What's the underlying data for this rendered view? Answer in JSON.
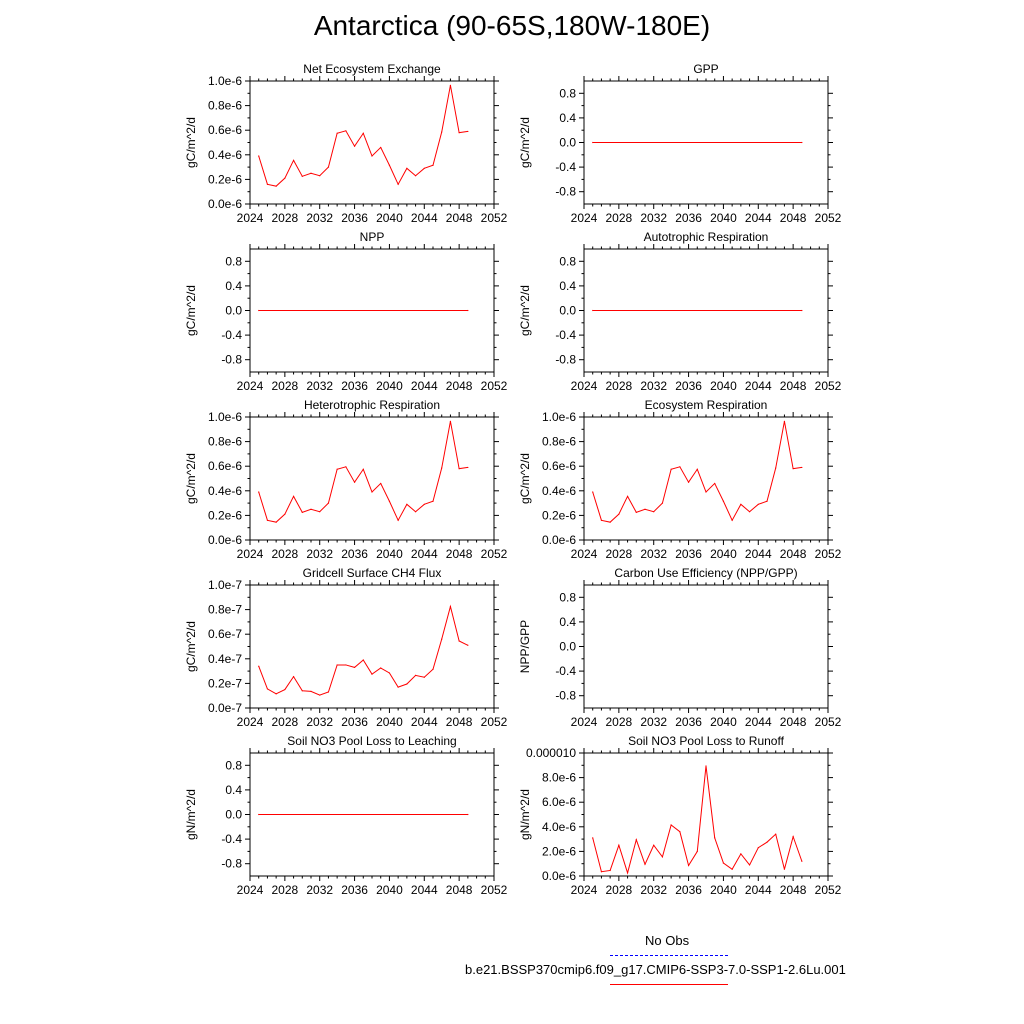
{
  "title": "Antarctica (90-65S,180W-180E)",
  "colors": {
    "series": "#ff0000",
    "obs": "#0000ff",
    "axis": "#000000"
  },
  "legend": {
    "obs_label": "No Obs",
    "case_label": "b.e21.BSSP370cmip6.f09_g17.CMIP6-SSP3-7.0-SSP1-2.6Lu.001"
  },
  "chart_data": [
    {
      "type": "line",
      "title": "Net Ecosystem Exchange",
      "ylabel": "gC/m^2/d",
      "xlim": [
        2024,
        2052
      ],
      "xticks": [
        2024,
        2028,
        2032,
        2036,
        2040,
        2044,
        2048,
        2052
      ],
      "xtick_labels": [
        "2024",
        "2028",
        "2032",
        "2036",
        "2040",
        "2044",
        "2048",
        "2052"
      ],
      "ylim": [
        0,
        1e-06
      ],
      "yticks": [
        0,
        2e-07,
        4e-07,
        6e-07,
        8e-07,
        1e-06
      ],
      "ytick_labels": [
        "0.0e-6",
        "0.2e-6",
        "0.4e-6",
        "0.6e-6",
        "0.8e-6",
        "1.0e-6"
      ],
      "x": [
        2025,
        2026,
        2027,
        2028,
        2029,
        2030,
        2031,
        2032,
        2033,
        2034,
        2035,
        2036,
        2037,
        2038,
        2039,
        2040,
        2041,
        2042,
        2043,
        2044,
        2045,
        2046,
        2047,
        2048,
        2049
      ],
      "y": [
        3.9e-07,
        1.6e-07,
        1.45e-07,
        2.1e-07,
        3.55e-07,
        2.25e-07,
        2.5e-07,
        2.3e-07,
        3e-07,
        5.75e-07,
        5.95e-07,
        4.7e-07,
        5.75e-07,
        3.9e-07,
        4.6e-07,
        3.15e-07,
        1.6e-07,
        2.9e-07,
        2.3e-07,
        2.9e-07,
        3.15e-07,
        5.85e-07,
        9.65e-07,
        5.8e-07,
        5.9e-07
      ]
    },
    {
      "type": "line",
      "title": "GPP",
      "ylabel": "gC/m^2/d",
      "xlim": [
        2024,
        2052
      ],
      "xticks": [
        2024,
        2028,
        2032,
        2036,
        2040,
        2044,
        2048,
        2052
      ],
      "xtick_labels": [
        "2024",
        "2028",
        "2032",
        "2036",
        "2040",
        "2044",
        "2048",
        "2052"
      ],
      "ylim": [
        -1,
        1
      ],
      "yticks": [
        -0.8,
        -0.4,
        0,
        0.4,
        0.8
      ],
      "ytick_labels": [
        "-0.8",
        "-0.4",
        "0.0",
        "0.4",
        "0.8"
      ],
      "x": [
        2025,
        2049
      ],
      "y": [
        0,
        0
      ]
    },
    {
      "type": "line",
      "title": "NPP",
      "ylabel": "gC/m^2/d",
      "xlim": [
        2024,
        2052
      ],
      "xticks": [
        2024,
        2028,
        2032,
        2036,
        2040,
        2044,
        2048,
        2052
      ],
      "xtick_labels": [
        "2024",
        "2028",
        "2032",
        "2036",
        "2040",
        "2044",
        "2048",
        "2052"
      ],
      "ylim": [
        -1,
        1
      ],
      "yticks": [
        -0.8,
        -0.4,
        0,
        0.4,
        0.8
      ],
      "ytick_labels": [
        "-0.8",
        "-0.4",
        "0.0",
        "0.4",
        "0.8"
      ],
      "x": [
        2025,
        2049
      ],
      "y": [
        0,
        0
      ]
    },
    {
      "type": "line",
      "title": "Autotrophic Respiration",
      "ylabel": "gC/m^2/d",
      "xlim": [
        2024,
        2052
      ],
      "xticks": [
        2024,
        2028,
        2032,
        2036,
        2040,
        2044,
        2048,
        2052
      ],
      "xtick_labels": [
        "2024",
        "2028",
        "2032",
        "2036",
        "2040",
        "2044",
        "2048",
        "2052"
      ],
      "ylim": [
        -1,
        1
      ],
      "yticks": [
        -0.8,
        -0.4,
        0,
        0.4,
        0.8
      ],
      "ytick_labels": [
        "-0.8",
        "-0.4",
        "0.0",
        "0.4",
        "0.8"
      ],
      "x": [
        2025,
        2049
      ],
      "y": [
        0,
        0
      ]
    },
    {
      "type": "line",
      "title": "Heterotrophic Respiration",
      "ylabel": "gC/m^2/d",
      "xlim": [
        2024,
        2052
      ],
      "xticks": [
        2024,
        2028,
        2032,
        2036,
        2040,
        2044,
        2048,
        2052
      ],
      "xtick_labels": [
        "2024",
        "2028",
        "2032",
        "2036",
        "2040",
        "2044",
        "2048",
        "2052"
      ],
      "ylim": [
        0,
        1e-06
      ],
      "yticks": [
        0,
        2e-07,
        4e-07,
        6e-07,
        8e-07,
        1e-06
      ],
      "ytick_labels": [
        "0.0e-6",
        "0.2e-6",
        "0.4e-6",
        "0.6e-6",
        "0.8e-6",
        "1.0e-6"
      ],
      "x": [
        2025,
        2026,
        2027,
        2028,
        2029,
        2030,
        2031,
        2032,
        2033,
        2034,
        2035,
        2036,
        2037,
        2038,
        2039,
        2040,
        2041,
        2042,
        2043,
        2044,
        2045,
        2046,
        2047,
        2048,
        2049
      ],
      "y": [
        3.9e-07,
        1.6e-07,
        1.45e-07,
        2.1e-07,
        3.55e-07,
        2.25e-07,
        2.5e-07,
        2.3e-07,
        3e-07,
        5.75e-07,
        5.95e-07,
        4.7e-07,
        5.75e-07,
        3.9e-07,
        4.6e-07,
        3.15e-07,
        1.6e-07,
        2.9e-07,
        2.3e-07,
        2.9e-07,
        3.15e-07,
        5.85e-07,
        9.65e-07,
        5.8e-07,
        5.9e-07
      ]
    },
    {
      "type": "line",
      "title": "Ecosystem Respiration",
      "ylabel": "gC/m^2/d",
      "xlim": [
        2024,
        2052
      ],
      "xticks": [
        2024,
        2028,
        2032,
        2036,
        2040,
        2044,
        2048,
        2052
      ],
      "xtick_labels": [
        "2024",
        "2028",
        "2032",
        "2036",
        "2040",
        "2044",
        "2048",
        "2052"
      ],
      "ylim": [
        0,
        1e-06
      ],
      "yticks": [
        0,
        2e-07,
        4e-07,
        6e-07,
        8e-07,
        1e-06
      ],
      "ytick_labels": [
        "0.0e-6",
        "0.2e-6",
        "0.4e-6",
        "0.6e-6",
        "0.8e-6",
        "1.0e-6"
      ],
      "x": [
        2025,
        2026,
        2027,
        2028,
        2029,
        2030,
        2031,
        2032,
        2033,
        2034,
        2035,
        2036,
        2037,
        2038,
        2039,
        2040,
        2041,
        2042,
        2043,
        2044,
        2045,
        2046,
        2047,
        2048,
        2049
      ],
      "y": [
        3.9e-07,
        1.6e-07,
        1.45e-07,
        2.1e-07,
        3.55e-07,
        2.25e-07,
        2.5e-07,
        2.3e-07,
        3e-07,
        5.75e-07,
        5.95e-07,
        4.7e-07,
        5.75e-07,
        3.9e-07,
        4.6e-07,
        3.15e-07,
        1.6e-07,
        2.9e-07,
        2.3e-07,
        2.9e-07,
        3.15e-07,
        5.85e-07,
        9.65e-07,
        5.8e-07,
        5.9e-07
      ]
    },
    {
      "type": "line",
      "title": "Gridcell Surface CH4 Flux",
      "ylabel": "gC/m^2/d",
      "xlim": [
        2024,
        2052
      ],
      "xticks": [
        2024,
        2028,
        2032,
        2036,
        2040,
        2044,
        2048,
        2052
      ],
      "xtick_labels": [
        "2024",
        "2028",
        "2032",
        "2036",
        "2040",
        "2044",
        "2048",
        "2052"
      ],
      "ylim": [
        0,
        1e-07
      ],
      "yticks": [
        0,
        2e-08,
        4e-08,
        6e-08,
        8e-08,
        1e-07
      ],
      "ytick_labels": [
        "0.0e-7",
        "0.2e-7",
        "0.4e-7",
        "0.6e-7",
        "0.8e-7",
        "1.0e-7"
      ],
      "x": [
        2025,
        2026,
        2027,
        2028,
        2029,
        2030,
        2031,
        2032,
        2033,
        2034,
        2035,
        2036,
        2037,
        2038,
        2039,
        2040,
        2041,
        2042,
        2043,
        2044,
        2045,
        2046,
        2047,
        2048,
        2049
      ],
      "y": [
        3.4e-08,
        1.55e-08,
        1.15e-08,
        1.5e-08,
        2.55e-08,
        1.4e-08,
        1.35e-08,
        1.05e-08,
        1.3e-08,
        3.5e-08,
        3.5e-08,
        3.3e-08,
        3.9e-08,
        2.75e-08,
        3.25e-08,
        2.85e-08,
        1.7e-08,
        1.95e-08,
        2.65e-08,
        2.5e-08,
        3.15e-08,
        5.6e-08,
        8.25e-08,
        5.45e-08,
        5.1e-08
      ]
    },
    {
      "type": "line",
      "title": "Carbon Use Efficiency (NPP/GPP)",
      "ylabel": "NPP/GPP",
      "xlim": [
        2024,
        2052
      ],
      "xticks": [
        2024,
        2028,
        2032,
        2036,
        2040,
        2044,
        2048,
        2052
      ],
      "xtick_labels": [
        "2024",
        "2028",
        "2032",
        "2036",
        "2040",
        "2044",
        "2048",
        "2052"
      ],
      "ylim": [
        -1,
        1
      ],
      "yticks": [
        -0.8,
        -0.4,
        0,
        0.4,
        0.8
      ],
      "ytick_labels": [
        "-0.8",
        "-0.4",
        "0.0",
        "0.4",
        "0.8"
      ],
      "x": [],
      "y": []
    },
    {
      "type": "line",
      "title": "Soil NO3 Pool Loss to Leaching",
      "ylabel": "gN/m^2/d",
      "xlim": [
        2024,
        2052
      ],
      "xticks": [
        2024,
        2028,
        2032,
        2036,
        2040,
        2044,
        2048,
        2052
      ],
      "xtick_labels": [
        "2024",
        "2028",
        "2032",
        "2036",
        "2040",
        "2044",
        "2048",
        "2052"
      ],
      "ylim": [
        -1,
        1
      ],
      "yticks": [
        -0.8,
        -0.4,
        0,
        0.4,
        0.8
      ],
      "ytick_labels": [
        "-0.8",
        "-0.4",
        "0.0",
        "0.4",
        "0.8"
      ],
      "x": [
        2025,
        2049
      ],
      "y": [
        0,
        0
      ]
    },
    {
      "type": "line",
      "title": "Soil NO3 Pool Loss to Runoff",
      "ylabel": "gN/m^2/d",
      "xlim": [
        2024,
        2052
      ],
      "xticks": [
        2024,
        2028,
        2032,
        2036,
        2040,
        2044,
        2048,
        2052
      ],
      "xtick_labels": [
        "2024",
        "2028",
        "2032",
        "2036",
        "2040",
        "2044",
        "2048",
        "2052"
      ],
      "ylim": [
        0,
        1e-05
      ],
      "yticks": [
        0,
        2e-06,
        4e-06,
        6e-06,
        8e-06,
        1e-05
      ],
      "ytick_labels": [
        "0.0e-6",
        "2.0e-6",
        "4.0e-6",
        "6.0e-6",
        "8.0e-6",
        "0.000010"
      ],
      "x": [
        2025,
        2026,
        2027,
        2028,
        2029,
        2030,
        2031,
        2032,
        2033,
        2034,
        2035,
        2036,
        2037,
        2038,
        2039,
        2040,
        2041,
        2042,
        2043,
        2044,
        2045,
        2046,
        2047,
        2048,
        2049
      ],
      "y": [
        3.1e-06,
        3.5e-07,
        4.5e-07,
        2.5e-06,
        2.5e-07,
        2.95e-06,
        9.5e-07,
        2.5e-06,
        1.55e-06,
        4.15e-06,
        3.6e-06,
        8.5e-07,
        2e-06,
        8.95e-06,
        3.1e-06,
        1.05e-06,
        5.5e-07,
        1.8e-06,
        9e-07,
        2.3e-06,
        2.75e-06,
        3.4e-06,
        5.5e-07,
        3.2e-06,
        1.2e-06
      ]
    }
  ]
}
